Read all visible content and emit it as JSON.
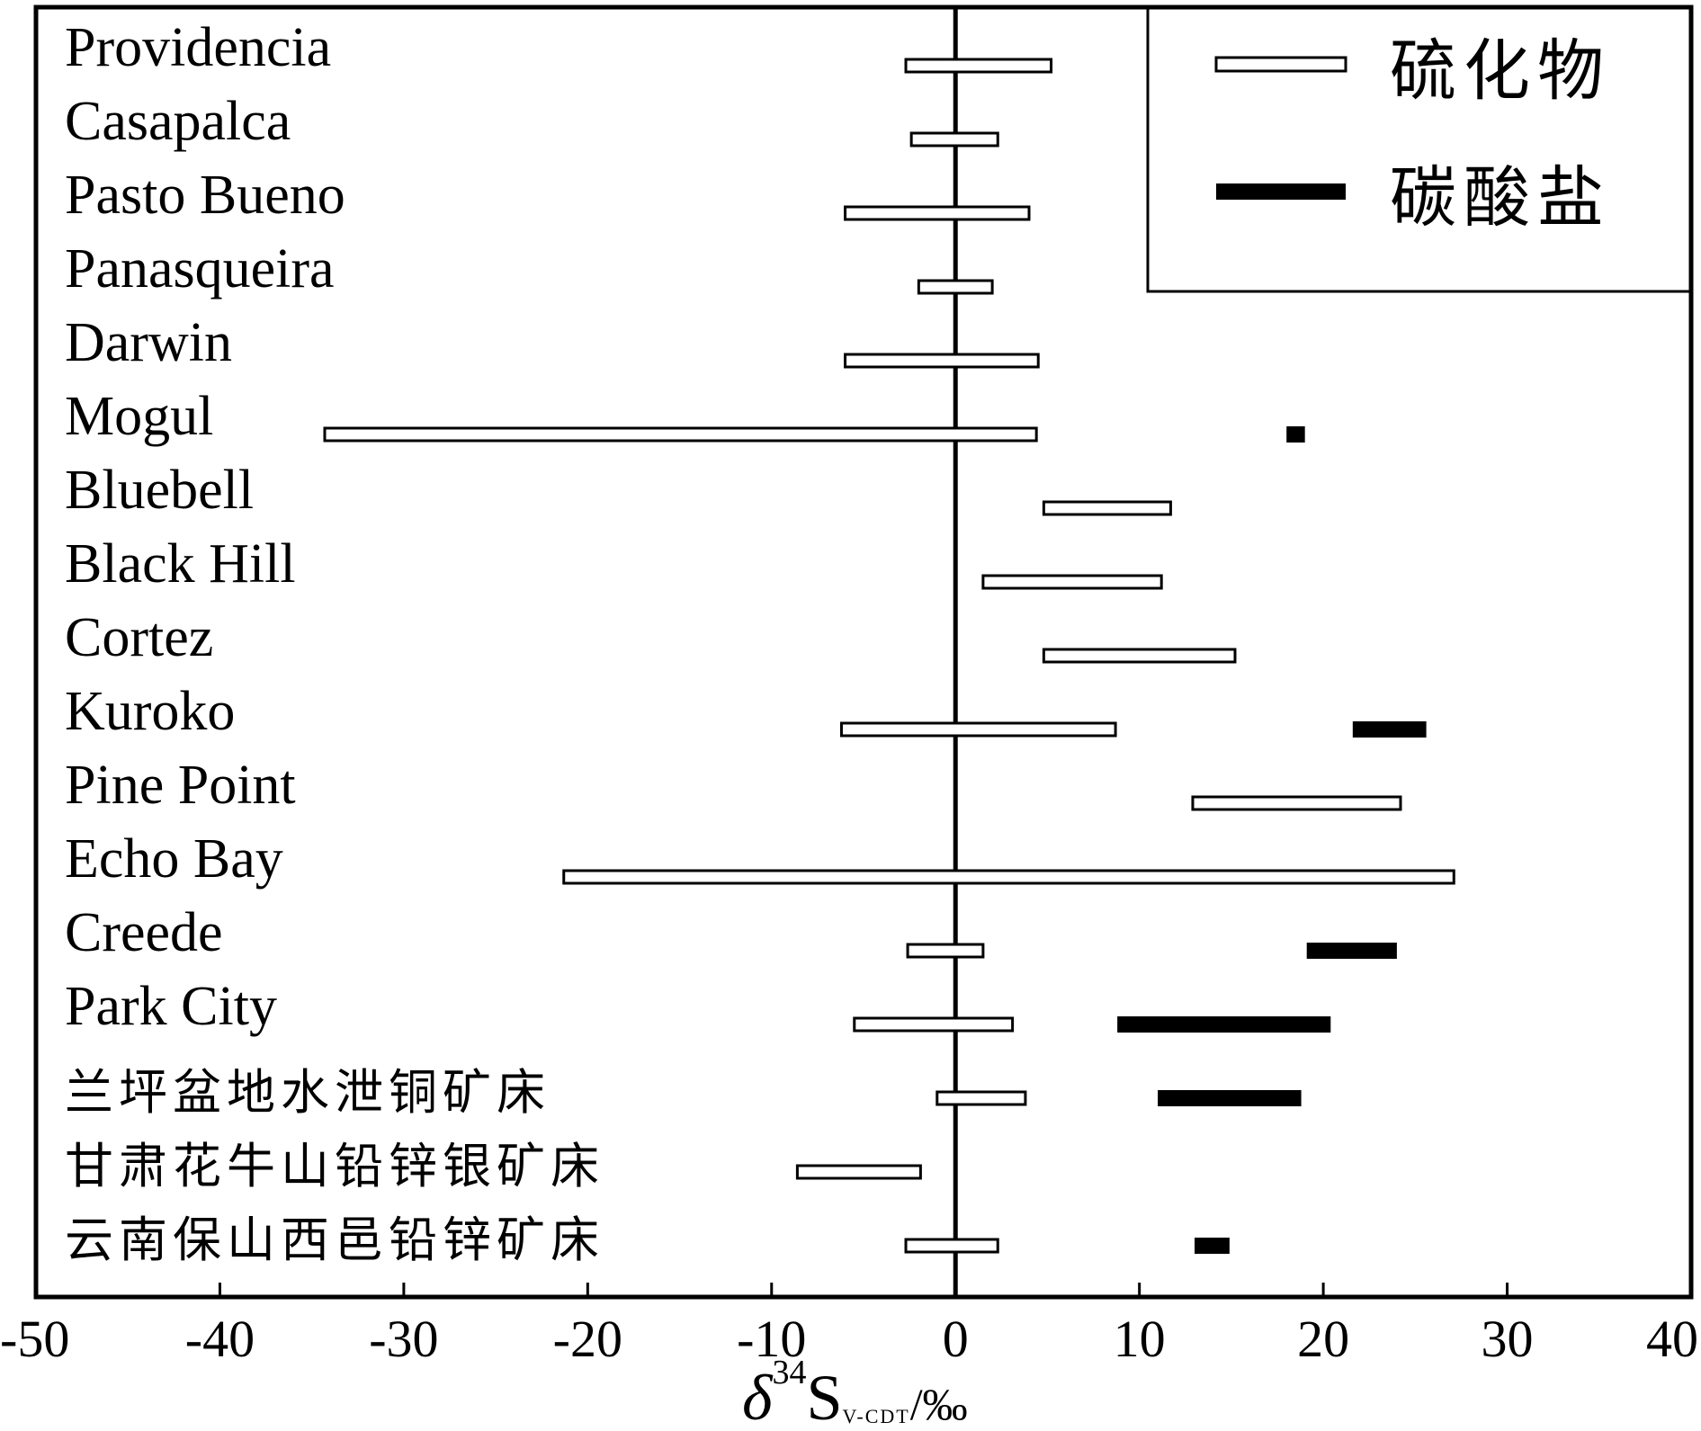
{
  "chart_data": {
    "type": "range-bar",
    "title": "",
    "xlabel": {
      "symbol": "δ",
      "superscript": "34",
      "main": "S",
      "subscript": "V-CDT",
      "unit": "/‰"
    },
    "xlim": [
      -50,
      40
    ],
    "xticks": [
      "-50",
      "-40",
      "-30",
      "-20",
      "-10",
      "0",
      "10",
      "20",
      "30",
      "40"
    ],
    "zero_line": true,
    "legend_position": "top-right",
    "series": [
      {
        "name": "硫化物",
        "style": "hollow",
        "color": "#000000"
      },
      {
        "name": "碳酸盐",
        "style": "solid",
        "color": "#000000"
      }
    ],
    "categories": [
      {
        "name": "Providencia",
        "sulfide": [
          -2.7,
          5.2
        ],
        "carbonate": null
      },
      {
        "name": "Casapalca",
        "sulfide": [
          -2.4,
          2.3
        ],
        "carbonate": null
      },
      {
        "name": "Pasto Bueno",
        "sulfide": [
          -6.0,
          4.0
        ],
        "carbonate": null
      },
      {
        "name": "Panasqueira",
        "sulfide": [
          -2.0,
          2.0
        ],
        "carbonate": null
      },
      {
        "name": "Darwin",
        "sulfide": [
          -6.0,
          4.5
        ],
        "carbonate": null
      },
      {
        "name": "Mogul",
        "sulfide": [
          -34.3,
          4.4
        ],
        "carbonate": [
          18.0,
          19.0
        ]
      },
      {
        "name": "Bluebell",
        "sulfide": [
          4.8,
          11.7
        ],
        "carbonate": null
      },
      {
        "name": "Black Hill",
        "sulfide": [
          1.5,
          11.2
        ],
        "carbonate": null
      },
      {
        "name": "Cortez",
        "sulfide": [
          4.8,
          15.2
        ],
        "carbonate": null
      },
      {
        "name": "Kuroko",
        "sulfide": [
          -6.2,
          8.7
        ],
        "carbonate": [
          21.6,
          25.6
        ]
      },
      {
        "name": "Pine Point",
        "sulfide": [
          12.9,
          24.2
        ],
        "carbonate": null
      },
      {
        "name": "Echo Bay",
        "sulfide": [
          -21.3,
          27.1
        ],
        "carbonate": null
      },
      {
        "name": "Creede",
        "sulfide": [
          -2.6,
          1.5
        ],
        "carbonate": [
          19.1,
          24.0
        ]
      },
      {
        "name": "Park City",
        "sulfide": [
          -5.5,
          3.1
        ],
        "carbonate": [
          8.8,
          20.4
        ]
      },
      {
        "name": "兰坪盆地水泄铜矿床",
        "sulfide": [
          -1.0,
          3.8
        ],
        "carbonate": [
          11.0,
          18.8
        ]
      },
      {
        "name": "甘肃花牛山铅锌银矿床",
        "sulfide": [
          -8.6,
          -1.9
        ],
        "carbonate": null
      },
      {
        "name": "云南保山西邑铅锌矿床",
        "sulfide": [
          -2.7,
          2.3
        ],
        "carbonate": [
          13.0,
          14.9
        ]
      }
    ]
  }
}
